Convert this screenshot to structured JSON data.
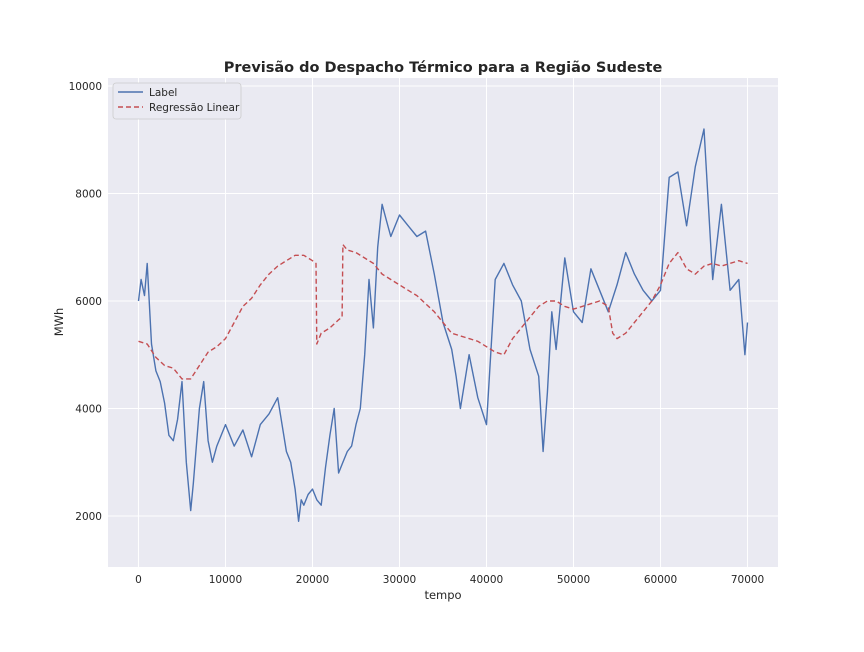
{
  "chart_data": {
    "type": "line",
    "title": "Previsão do Despacho Térmico para a Região Sudeste",
    "xlabel": "tempo",
    "ylabel": "MWh",
    "xlim": [
      -3500,
      73500
    ],
    "ylim": [
      1050,
      10150
    ],
    "xticks": [
      0,
      10000,
      20000,
      30000,
      40000,
      50000,
      60000,
      70000
    ],
    "yticks": [
      2000,
      4000,
      6000,
      8000,
      10000
    ],
    "grid": true,
    "legend_position": "top-left",
    "series": [
      {
        "name": "Label",
        "color": "#4c72b0",
        "style": "solid",
        "x": [
          0,
          300,
          700,
          1000,
          1500,
          2000,
          2500,
          3000,
          3500,
          4000,
          4500,
          5000,
          5500,
          6000,
          6300,
          6600,
          7000,
          7500,
          8000,
          8500,
          9000,
          10000,
          11000,
          12000,
          13000,
          14000,
          15000,
          16000,
          17000,
          17500,
          18000,
          18400,
          18700,
          19000,
          19500,
          20000,
          20500,
          21000,
          21500,
          22000,
          22500,
          23000,
          23500,
          24000,
          24500,
          25000,
          25500,
          26000,
          26500,
          27000,
          27500,
          28000,
          28500,
          29000,
          30000,
          31000,
          32000,
          33000,
          34000,
          35000,
          36000,
          36500,
          37000,
          38000,
          39000,
          40000,
          41000,
          42000,
          43000,
          44000,
          45000,
          46000,
          46500,
          47000,
          47500,
          48000,
          49000,
          50000,
          51000,
          52000,
          53000,
          54000,
          55000,
          56000,
          57000,
          58000,
          59000,
          60000,
          61000,
          62000,
          63000,
          64000,
          65000,
          66000,
          67000,
          68000,
          69000,
          69700,
          70000
        ],
        "y": [
          6000,
          6400,
          6100,
          6700,
          5200,
          4700,
          4500,
          4100,
          3500,
          3400,
          3800,
          4500,
          3000,
          2100,
          2600,
          3200,
          4000,
          4500,
          3400,
          3000,
          3300,
          3700,
          3300,
          3600,
          3100,
          3700,
          3900,
          4200,
          3200,
          3000,
          2500,
          1900,
          2300,
          2200,
          2400,
          2500,
          2300,
          2200,
          2900,
          3500,
          4000,
          2800,
          3000,
          3200,
          3300,
          3700,
          4000,
          5000,
          6400,
          5500,
          7000,
          7800,
          7500,
          7200,
          7600,
          7400,
          7200,
          7300,
          6500,
          5600,
          5100,
          4600,
          4000,
          5000,
          4200,
          3700,
          6400,
          6700,
          6300,
          6000,
          5100,
          4600,
          3200,
          4300,
          5800,
          5100,
          6800,
          5800,
          5600,
          6600,
          6200,
          5800,
          6300,
          6900,
          6500,
          6200,
          6000,
          6200,
          8300,
          8400,
          7400,
          8500,
          9200,
          6400,
          7800,
          6200,
          6400,
          5000,
          5600
        ]
      },
      {
        "name": "Regressão Linear",
        "color": "#c44e52",
        "style": "dashed",
        "x": [
          0,
          1000,
          2000,
          3000,
          4000,
          5000,
          6000,
          7000,
          8000,
          9000,
          10000,
          11000,
          12000,
          13000,
          14000,
          15000,
          16000,
          17000,
          18000,
          19000,
          20000,
          20400,
          20500,
          21000,
          22000,
          23000,
          23400,
          23500,
          24000,
          25000,
          26000,
          27000,
          28000,
          29000,
          30000,
          31000,
          32000,
          33000,
          34000,
          35000,
          36000,
          37000,
          38000,
          39000,
          40000,
          41000,
          42000,
          43000,
          44000,
          45000,
          46000,
          47000,
          48000,
          49000,
          50000,
          51000,
          52000,
          53000,
          54000,
          54500,
          55000,
          56000,
          57000,
          58000,
          59000,
          60000,
          61000,
          62000,
          63000,
          64000,
          65000,
          66000,
          67000,
          68000,
          69000,
          70000
        ],
        "y": [
          5250,
          5200,
          4950,
          4800,
          4750,
          4550,
          4550,
          4800,
          5050,
          5150,
          5300,
          5600,
          5900,
          6050,
          6300,
          6500,
          6650,
          6750,
          6850,
          6850,
          6750,
          6700,
          5200,
          5400,
          5500,
          5650,
          5700,
          7050,
          6950,
          6900,
          6800,
          6700,
          6500,
          6400,
          6300,
          6200,
          6100,
          5950,
          5800,
          5600,
          5400,
          5350,
          5300,
          5250,
          5150,
          5050,
          5000,
          5300,
          5500,
          5700,
          5900,
          6000,
          6000,
          5900,
          5850,
          5900,
          5950,
          6000,
          5900,
          5400,
          5300,
          5400,
          5600,
          5800,
          6000,
          6300,
          6700,
          6900,
          6600,
          6500,
          6650,
          6700,
          6650,
          6700,
          6750,
          6700
        ]
      }
    ]
  }
}
